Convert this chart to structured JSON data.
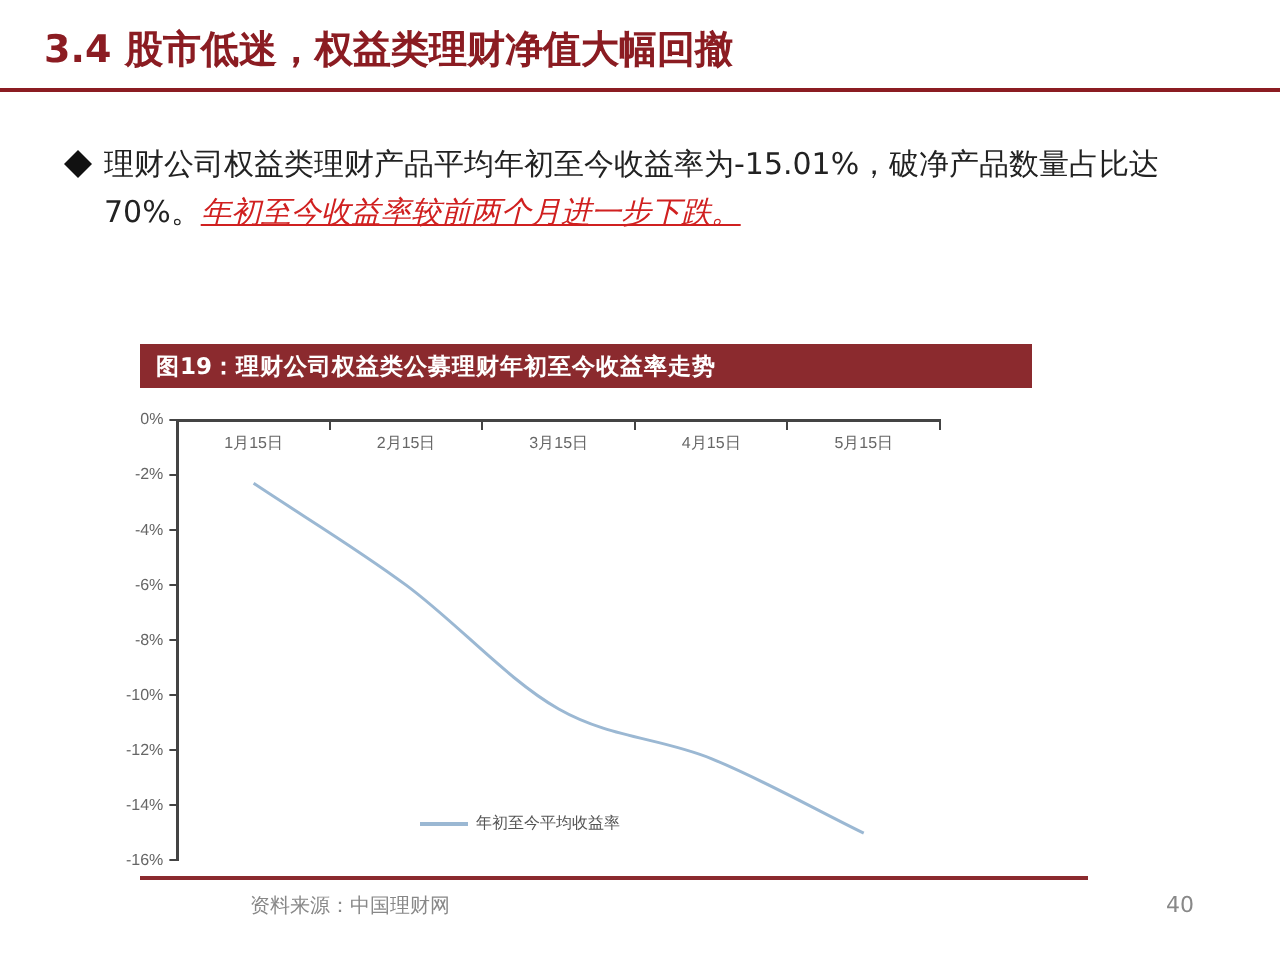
{
  "chart_data": {
    "type": "line",
    "title": "3.4 股市低迷，权益类理财净值大幅回撤",
    "subtitle": "理财公司权益类理财产品平均年初至今收益率为-15.01%，破净产品数量占比达70%。",
    "annotations": [
      "年初至今收益率较前两个月进一步下跌。",
      "图19：理财公司权益类公募理财年初至今收益率走势",
      "资料来源：中国理财网",
      "40"
    ],
    "categories": [
      "1月15日",
      "2月15日",
      "3月15日",
      "4月15日",
      "5月15日"
    ],
    "series": [
      {
        "name": "年初至今平均收益率",
        "color": "#9bb8d3",
        "values": [
          -2.3,
          -6.0,
          -10.5,
          -12.3,
          -15.01
        ]
      }
    ],
    "ylim": [
      -16,
      0
    ],
    "yticks": [
      {
        "value": 0,
        "label": "0%"
      },
      {
        "value": -2,
        "label": "-2%"
      },
      {
        "value": -4,
        "label": "-4%"
      },
      {
        "value": -6,
        "label": "-6%"
      },
      {
        "value": -8,
        "label": "-8%"
      },
      {
        "value": -10,
        "label": "-10%"
      },
      {
        "value": -12,
        "label": "-12%"
      },
      {
        "value": -14,
        "label": "-14%"
      },
      {
        "value": -16,
        "label": "-16%"
      }
    ],
    "grid": false,
    "legend": "bottom",
    "marker": "none",
    "line_style": "solid"
  }
}
